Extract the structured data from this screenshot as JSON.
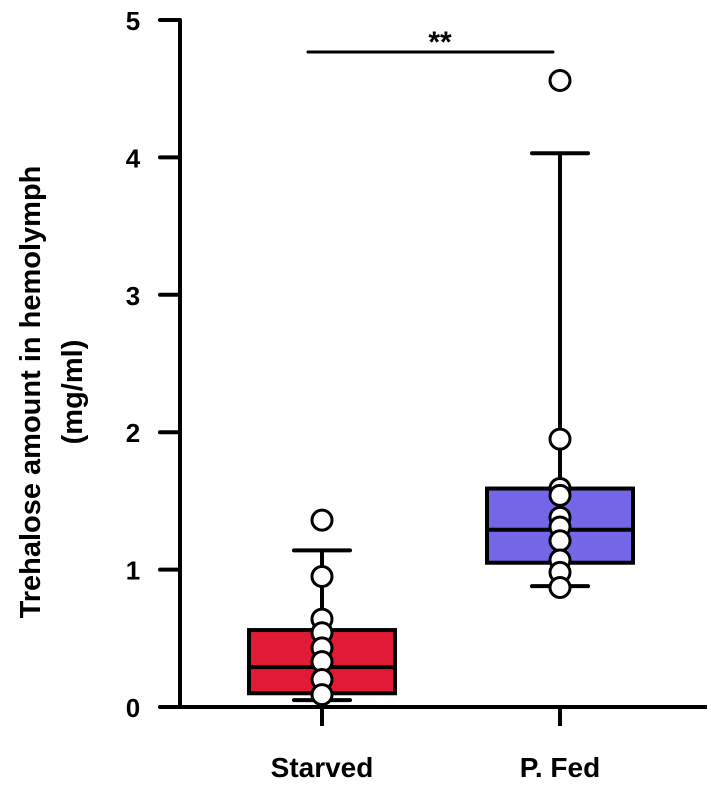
{
  "chart_data": {
    "type": "box",
    "title": "",
    "xlabel": "",
    "ylabel": "Trehalose amount in hemolymph (mg/ml)",
    "ylabel_lines": [
      "Trehalose amount in hemolymph",
      "(mg/ml)"
    ],
    "ylim": [
      0,
      5
    ],
    "yticks": [
      0,
      1,
      2,
      3,
      4,
      5
    ],
    "grid": false,
    "legend": null,
    "categories": [
      "Starved",
      "P. Fed"
    ],
    "series": [
      {
        "name": "Starved",
        "color": "#E11B36",
        "whisker_low": 0.05,
        "q1": 0.1,
        "median": 0.29,
        "q3": 0.56,
        "whisker_high": 1.14,
        "points": [
          1.36,
          0.95,
          0.64,
          0.54,
          0.43,
          0.33,
          0.2,
          0.09
        ]
      },
      {
        "name": "P. Fed",
        "color": "#7466E6",
        "whisker_low": 0.88,
        "q1": 1.05,
        "median": 1.29,
        "q3": 1.59,
        "whisker_high": 4.03,
        "points": [
          4.56,
          1.95,
          1.59,
          1.54,
          1.38,
          1.31,
          1.21,
          1.07,
          0.98,
          0.87
        ]
      }
    ],
    "annotations": [
      {
        "type": "significance",
        "text": "**",
        "from": "Starved",
        "to": "P. Fed",
        "y": 4.75
      }
    ]
  }
}
